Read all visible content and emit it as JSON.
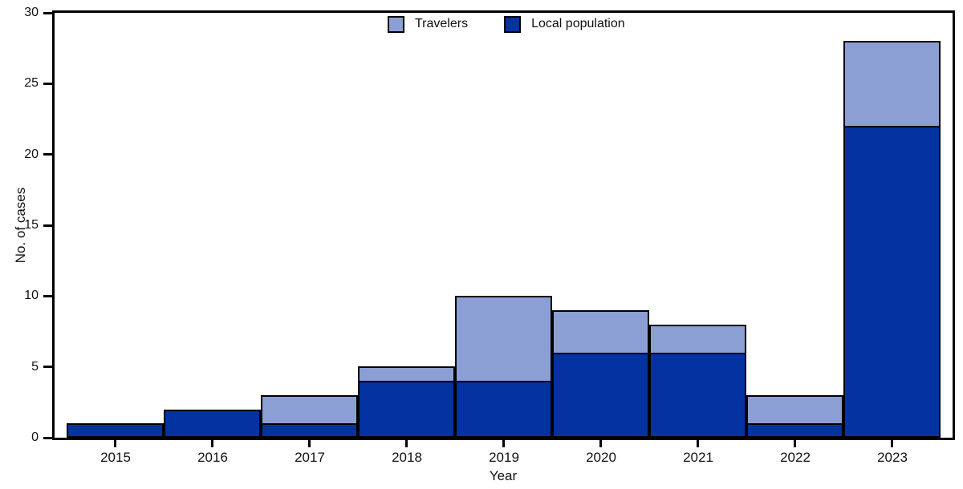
{
  "figure": {
    "ylabel": "No. of cases",
    "xlabel": "Year"
  },
  "legend": {
    "position": "top-center-inside-plot",
    "items": [
      {
        "label": "Travelers",
        "color": "#8C9FD4"
      },
      {
        "label": "Local population",
        "color": "#0233A1"
      }
    ]
  },
  "chart_data": {
    "type": "bar",
    "stacked": true,
    "title": "",
    "xlabel": "Year",
    "ylabel": "No. of cases",
    "categories": [
      "2015",
      "2016",
      "2017",
      "2018",
      "2019",
      "2020",
      "2021",
      "2022",
      "2023"
    ],
    "series": [
      {
        "name": "Travelers",
        "color": "#8C9FD4",
        "values": [
          0,
          0,
          2,
          1,
          6,
          3,
          2,
          2,
          6
        ]
      },
      {
        "name": "Local population",
        "color": "#0233A1",
        "values": [
          1,
          2,
          1,
          4,
          4,
          6,
          6,
          1,
          22
        ]
      }
    ],
    "stack_bottom_to_top": [
      "Local population",
      "Travelers"
    ],
    "totals": [
      1,
      2,
      3,
      5,
      10,
      9,
      8,
      3,
      28
    ],
    "ylim": [
      0,
      30
    ],
    "yticks": [
      0,
      5,
      10,
      15,
      20,
      25,
      30
    ],
    "grid": false,
    "bar_edge_color": "#000000",
    "bars_touching": true,
    "legend_position": "top-center"
  }
}
